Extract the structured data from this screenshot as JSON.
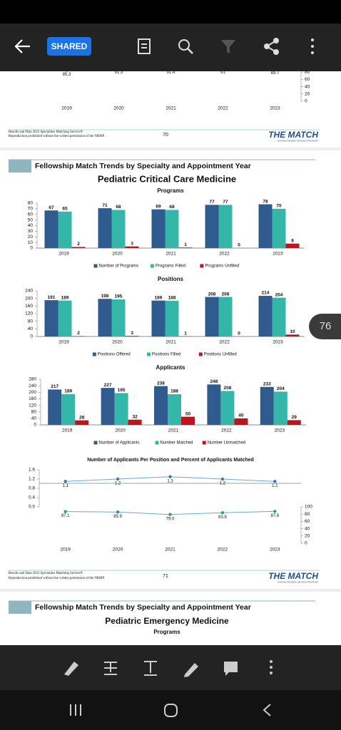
{
  "toolbar": {
    "button": "SHARED"
  },
  "page_indicator": "76",
  "pages": [
    {
      "footer": {
        "line1": "Results and Data 2023 Specialties Matching Service®",
        "line2": "Reproduction prohibited without the written permission of the NRMP.",
        "number": 70,
        "logo": "THE MATCH",
        "logo_sub": "NATIONAL RESIDENT MATCHING PROGRAM®"
      }
    },
    {
      "header": "Fellowship Match Trends by Specialty and Appointment Year",
      "title": "Pediatric Critical Care Medicine",
      "footer": {
        "line1": "Results and Data 2023 Specialties Matching Service®",
        "line2": "Reproduction prohibited without the written permission of the NRMP.",
        "number": 71,
        "logo": "THE MATCH",
        "logo_sub": "NATIONAL RESIDENT MATCHING PROGRAM®"
      }
    },
    {
      "header": "Fellowship Match Trends by Specialty and Appointment Year",
      "title": "Pediatric Emergency Medicine",
      "subtitle": "Programs"
    }
  ],
  "chart_data": [
    {
      "type": "line",
      "categories": [
        "2019",
        "2020",
        "2021",
        "2022",
        "2023"
      ],
      "series": [
        {
          "color": "#5b9bd5",
          "axis": "y2",
          "values": [
            85.3,
            91.3,
            91.4,
            91.0,
            89.7
          ]
        }
      ],
      "y2lim": [
        0,
        100
      ],
      "y2ticks": [
        0,
        20,
        40,
        60,
        80
      ]
    },
    {
      "type": "bar",
      "title": "Programs",
      "categories": [
        "2019",
        "2020",
        "2021",
        "2022",
        "2023"
      ],
      "series": [
        {
          "name": "Number of Programs",
          "color": "#2f5b8e",
          "values": [
            67,
            71,
            69,
            77,
            78
          ]
        },
        {
          "name": "Programs Filled",
          "color": "#34b7a8",
          "values": [
            65,
            68,
            68,
            77,
            70
          ]
        },
        {
          "name": "Programs Unfilled",
          "color": "#c0141c",
          "values": [
            2,
            3,
            1,
            0,
            8
          ]
        }
      ],
      "ylim": [
        0,
        80
      ],
      "yticks": [
        0,
        10,
        20,
        30,
        40,
        50,
        60,
        70,
        80
      ]
    },
    {
      "type": "bar",
      "title": "Positions",
      "categories": [
        "2019",
        "2020",
        "2021",
        "2022",
        "2023"
      ],
      "series": [
        {
          "name": "Positions Offered",
          "color": "#2f5b8e",
          "values": [
            191,
            198,
            189,
            208,
            214
          ]
        },
        {
          "name": "Positions Filled",
          "color": "#34b7a8",
          "values": [
            189,
            195,
            188,
            208,
            204
          ]
        },
        {
          "name": "Positions Unfilled",
          "color": "#c0141c",
          "values": [
            2,
            3,
            1,
            0,
            10
          ]
        }
      ],
      "ylim": [
        0,
        240
      ],
      "yticks": [
        0,
        40,
        80,
        120,
        160,
        200,
        240
      ]
    },
    {
      "type": "bar",
      "title": "Applicants",
      "categories": [
        "2019",
        "2020",
        "2021",
        "2022",
        "2023"
      ],
      "series": [
        {
          "name": "Number of Applicants",
          "color": "#2f5b8e",
          "values": [
            217,
            227,
            238,
            248,
            233
          ]
        },
        {
          "name": "Number Matched",
          "color": "#34b7a8",
          "values": [
            189,
            195,
            188,
            208,
            204
          ]
        },
        {
          "name": "Number Unmatched",
          "color": "#c0141c",
          "values": [
            28,
            32,
            50,
            40,
            29
          ]
        }
      ],
      "ylim": [
        0,
        280
      ],
      "yticks": [
        0,
        40,
        80,
        120,
        160,
        200,
        240,
        280
      ]
    },
    {
      "type": "line",
      "title": "Number of Applicants Per Position and Percent of Applicants Matched",
      "categories": [
        "2019",
        "2020",
        "2021",
        "2022",
        "2023"
      ],
      "series": [
        {
          "color": "#2f7fa8",
          "values": [
            1.1,
            1.2,
            1.3,
            1.2,
            1.1
          ]
        },
        {
          "color": "#23a08f",
          "axis": "y2",
          "values": [
            87.1,
            85.9,
            79.0,
            83.9,
            87.6
          ],
          "value_labels": [
            "87.1",
            "85.9",
            "79.0",
            "83.9",
            "87.6"
          ]
        }
      ],
      "ylim": [
        0,
        1.6
      ],
      "yticks": [
        {
          "value": 0,
          "label": "0.0"
        },
        0.4,
        0.8,
        1.2,
        1.6
      ],
      "y2lim": [
        0,
        100
      ],
      "y2ticks": [
        0,
        20,
        40,
        60,
        80,
        100
      ]
    }
  ]
}
